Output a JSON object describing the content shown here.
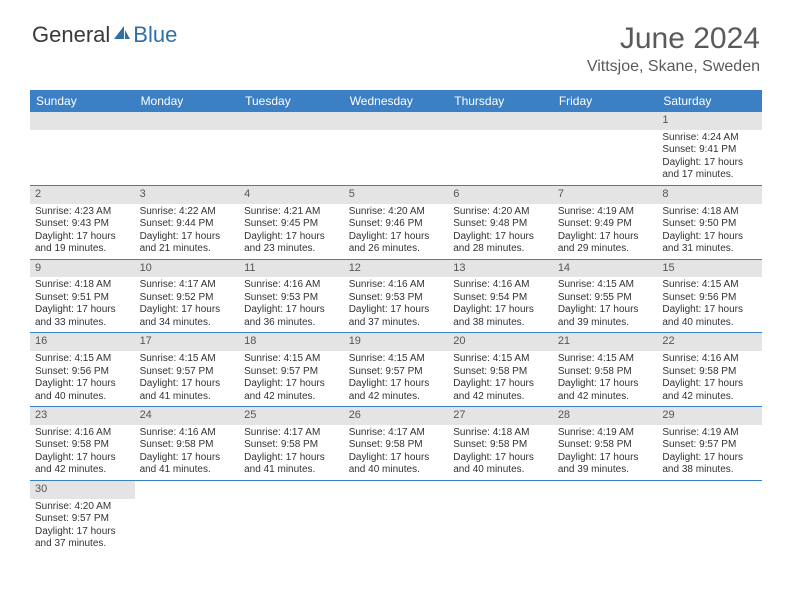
{
  "brand": {
    "part1": "General",
    "part2": "Blue"
  },
  "title": "June 2024",
  "location": "Vittsjoe, Skane, Sweden",
  "colors": {
    "header_bg": "#3b7fc4",
    "header_fg": "#ffffff",
    "daynum_bg": "#e4e4e4",
    "rule": "#3b7fc4",
    "text": "#333333",
    "title_color": "#5a5a5a"
  },
  "day_headers": [
    "Sunday",
    "Monday",
    "Tuesday",
    "Wednesday",
    "Thursday",
    "Friday",
    "Saturday"
  ],
  "weeks": [
    [
      {
        "n": "",
        "lines": []
      },
      {
        "n": "",
        "lines": []
      },
      {
        "n": "",
        "lines": []
      },
      {
        "n": "",
        "lines": []
      },
      {
        "n": "",
        "lines": []
      },
      {
        "n": "",
        "lines": []
      },
      {
        "n": "1",
        "lines": [
          "Sunrise: 4:24 AM",
          "Sunset: 9:41 PM",
          "Daylight: 17 hours",
          "and 17 minutes."
        ]
      }
    ],
    [
      {
        "n": "2",
        "lines": [
          "Sunrise: 4:23 AM",
          "Sunset: 9:43 PM",
          "Daylight: 17 hours",
          "and 19 minutes."
        ]
      },
      {
        "n": "3",
        "lines": [
          "Sunrise: 4:22 AM",
          "Sunset: 9:44 PM",
          "Daylight: 17 hours",
          "and 21 minutes."
        ]
      },
      {
        "n": "4",
        "lines": [
          "Sunrise: 4:21 AM",
          "Sunset: 9:45 PM",
          "Daylight: 17 hours",
          "and 23 minutes."
        ]
      },
      {
        "n": "5",
        "lines": [
          "Sunrise: 4:20 AM",
          "Sunset: 9:46 PM",
          "Daylight: 17 hours",
          "and 26 minutes."
        ]
      },
      {
        "n": "6",
        "lines": [
          "Sunrise: 4:20 AM",
          "Sunset: 9:48 PM",
          "Daylight: 17 hours",
          "and 28 minutes."
        ]
      },
      {
        "n": "7",
        "lines": [
          "Sunrise: 4:19 AM",
          "Sunset: 9:49 PM",
          "Daylight: 17 hours",
          "and 29 minutes."
        ]
      },
      {
        "n": "8",
        "lines": [
          "Sunrise: 4:18 AM",
          "Sunset: 9:50 PM",
          "Daylight: 17 hours",
          "and 31 minutes."
        ]
      }
    ],
    [
      {
        "n": "9",
        "lines": [
          "Sunrise: 4:18 AM",
          "Sunset: 9:51 PM",
          "Daylight: 17 hours",
          "and 33 minutes."
        ]
      },
      {
        "n": "10",
        "lines": [
          "Sunrise: 4:17 AM",
          "Sunset: 9:52 PM",
          "Daylight: 17 hours",
          "and 34 minutes."
        ]
      },
      {
        "n": "11",
        "lines": [
          "Sunrise: 4:16 AM",
          "Sunset: 9:53 PM",
          "Daylight: 17 hours",
          "and 36 minutes."
        ]
      },
      {
        "n": "12",
        "lines": [
          "Sunrise: 4:16 AM",
          "Sunset: 9:53 PM",
          "Daylight: 17 hours",
          "and 37 minutes."
        ]
      },
      {
        "n": "13",
        "lines": [
          "Sunrise: 4:16 AM",
          "Sunset: 9:54 PM",
          "Daylight: 17 hours",
          "and 38 minutes."
        ]
      },
      {
        "n": "14",
        "lines": [
          "Sunrise: 4:15 AM",
          "Sunset: 9:55 PM",
          "Daylight: 17 hours",
          "and 39 minutes."
        ]
      },
      {
        "n": "15",
        "lines": [
          "Sunrise: 4:15 AM",
          "Sunset: 9:56 PM",
          "Daylight: 17 hours",
          "and 40 minutes."
        ]
      }
    ],
    [
      {
        "n": "16",
        "lines": [
          "Sunrise: 4:15 AM",
          "Sunset: 9:56 PM",
          "Daylight: 17 hours",
          "and 40 minutes."
        ]
      },
      {
        "n": "17",
        "lines": [
          "Sunrise: 4:15 AM",
          "Sunset: 9:57 PM",
          "Daylight: 17 hours",
          "and 41 minutes."
        ]
      },
      {
        "n": "18",
        "lines": [
          "Sunrise: 4:15 AM",
          "Sunset: 9:57 PM",
          "Daylight: 17 hours",
          "and 42 minutes."
        ]
      },
      {
        "n": "19",
        "lines": [
          "Sunrise: 4:15 AM",
          "Sunset: 9:57 PM",
          "Daylight: 17 hours",
          "and 42 minutes."
        ]
      },
      {
        "n": "20",
        "lines": [
          "Sunrise: 4:15 AM",
          "Sunset: 9:58 PM",
          "Daylight: 17 hours",
          "and 42 minutes."
        ]
      },
      {
        "n": "21",
        "lines": [
          "Sunrise: 4:15 AM",
          "Sunset: 9:58 PM",
          "Daylight: 17 hours",
          "and 42 minutes."
        ]
      },
      {
        "n": "22",
        "lines": [
          "Sunrise: 4:16 AM",
          "Sunset: 9:58 PM",
          "Daylight: 17 hours",
          "and 42 minutes."
        ]
      }
    ],
    [
      {
        "n": "23",
        "lines": [
          "Sunrise: 4:16 AM",
          "Sunset: 9:58 PM",
          "Daylight: 17 hours",
          "and 42 minutes."
        ]
      },
      {
        "n": "24",
        "lines": [
          "Sunrise: 4:16 AM",
          "Sunset: 9:58 PM",
          "Daylight: 17 hours",
          "and 41 minutes."
        ]
      },
      {
        "n": "25",
        "lines": [
          "Sunrise: 4:17 AM",
          "Sunset: 9:58 PM",
          "Daylight: 17 hours",
          "and 41 minutes."
        ]
      },
      {
        "n": "26",
        "lines": [
          "Sunrise: 4:17 AM",
          "Sunset: 9:58 PM",
          "Daylight: 17 hours",
          "and 40 minutes."
        ]
      },
      {
        "n": "27",
        "lines": [
          "Sunrise: 4:18 AM",
          "Sunset: 9:58 PM",
          "Daylight: 17 hours",
          "and 40 minutes."
        ]
      },
      {
        "n": "28",
        "lines": [
          "Sunrise: 4:19 AM",
          "Sunset: 9:58 PM",
          "Daylight: 17 hours",
          "and 39 minutes."
        ]
      },
      {
        "n": "29",
        "lines": [
          "Sunrise: 4:19 AM",
          "Sunset: 9:57 PM",
          "Daylight: 17 hours",
          "and 38 minutes."
        ]
      }
    ],
    [
      {
        "n": "30",
        "lines": [
          "Sunrise: 4:20 AM",
          "Sunset: 9:57 PM",
          "Daylight: 17 hours",
          "and 37 minutes."
        ]
      },
      {
        "n": "",
        "lines": []
      },
      {
        "n": "",
        "lines": []
      },
      {
        "n": "",
        "lines": []
      },
      {
        "n": "",
        "lines": []
      },
      {
        "n": "",
        "lines": []
      },
      {
        "n": "",
        "lines": []
      }
    ]
  ]
}
